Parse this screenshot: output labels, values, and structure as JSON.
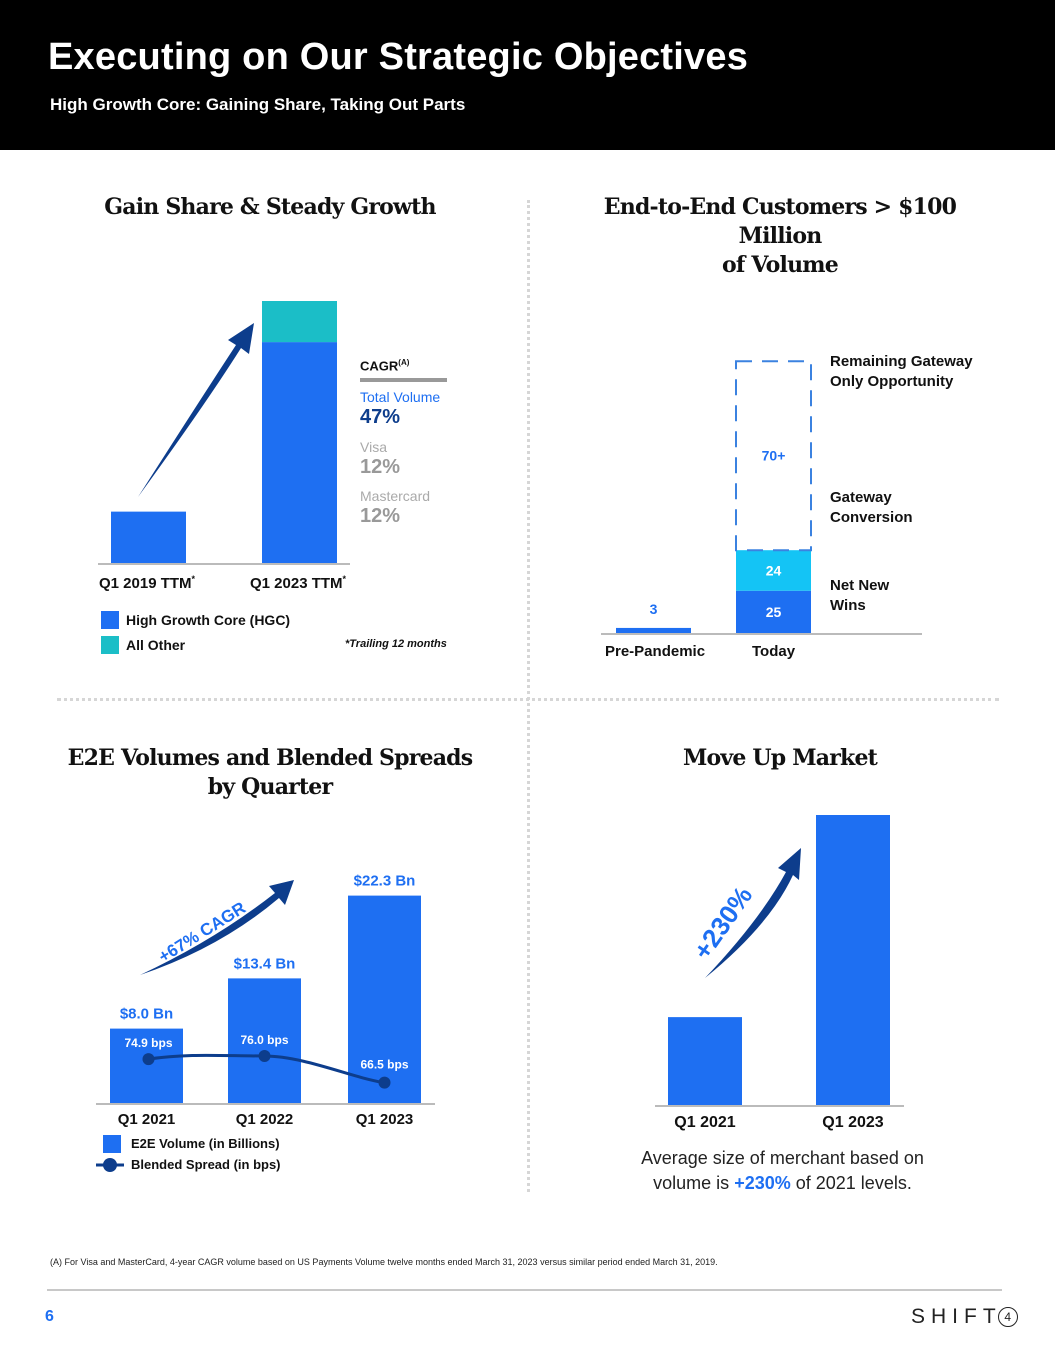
{
  "header": {
    "title": "Executing on Our Strategic Objectives",
    "subtitle": "High Growth Core: Gaining Share, Taking Out Parts"
  },
  "colors": {
    "accent_blue": "#1e6ff2",
    "teal": "#1bbec7",
    "light_blue": "#14c4f5",
    "dark_navy": "#0d3d8c",
    "gray": "#999999"
  },
  "panel1": {
    "title": "Gain Share & Steady Growth",
    "cagr_label": "CAGR",
    "cagr_superscript": "(A)",
    "metrics": [
      {
        "label": "Total Volume",
        "value": "47%"
      },
      {
        "label": "Visa",
        "value": "12%"
      },
      {
        "label": "Mastercard",
        "value": "12%"
      }
    ],
    "x_labels": [
      "Q1 2019 TTM",
      "Q1 2023 TTM"
    ],
    "asterisk": "*",
    "legend": [
      "High Growth Core (HGC)",
      "All Other"
    ],
    "note": "*Trailing 12 months"
  },
  "panel2": {
    "title_line1": "End-to-End Customers > $100 Million",
    "title_line2": "of Volume",
    "side_labels": [
      "Remaining Gateway\nOnly Opportunity",
      "Gateway\nConversion",
      "Net New\nWins"
    ],
    "x_labels": [
      "Pre-Pandemic",
      "Today"
    ]
  },
  "panel3": {
    "title_line1": "E2E Volumes and Blended Spreads",
    "title_line2": "by Quarter",
    "cagr_text": "+67% CAGR",
    "legend": [
      "E2E Volume (in Billions)",
      "Blended Spread (in bps)"
    ]
  },
  "panel4": {
    "title": "Move Up Market",
    "growth_text": "+230%",
    "caption_part1": "Average size of merchant based on",
    "caption_part2": "volume is ",
    "caption_highlight": "+230%",
    "caption_part3": " of 2021 levels."
  },
  "chart_data": [
    {
      "type": "bar",
      "title": "Gain Share & Steady Growth",
      "categories": [
        "Q1 2019 TTM",
        "Q1 2023 TTM"
      ],
      "series": [
        {
          "name": "High Growth Core (HGC)",
          "values": [
            1.0,
            4.3
          ]
        },
        {
          "name": "All Other",
          "values": [
            0,
            0.8
          ]
        }
      ],
      "stacked": true,
      "ylim": [
        0,
        5.1
      ],
      "note": "values approximate relative scale (unlabeled)"
    },
    {
      "type": "bar",
      "title": "End-to-End Customers > $100 Million of Volume",
      "categories": [
        "Pre-Pandemic",
        "Today"
      ],
      "series": [
        {
          "name": "Net New Wins",
          "values": [
            3,
            25
          ],
          "labels": [
            "3",
            "25"
          ]
        },
        {
          "name": "Gateway Conversion",
          "values": [
            0,
            24
          ],
          "labels": [
            "",
            "24"
          ]
        },
        {
          "name": "Remaining Gateway Only Opportunity",
          "values": [
            0,
            70
          ],
          "labels": [
            "",
            "70+"
          ]
        }
      ],
      "stacked": true,
      "ylim": [
        0,
        130
      ]
    },
    {
      "type": "bar",
      "title": "E2E Volumes and Blended Spreads by Quarter",
      "categories": [
        "Q1 2021",
        "Q1 2022",
        "Q1 2023"
      ],
      "series": [
        {
          "name": "E2E Volume (in Billions)",
          "values": [
            8.0,
            13.4,
            22.3
          ],
          "labels": [
            "$8.0 Bn",
            "$13.4 Bn",
            "$22.3 Bn"
          ]
        },
        {
          "name": "Blended Spread (in bps)",
          "type": "line",
          "values": [
            74.9,
            76.0,
            66.5
          ],
          "labels": [
            "74.9 bps",
            "76.0 bps",
            "66.5 bps"
          ]
        }
      ],
      "ylim": [
        0,
        24
      ]
    },
    {
      "type": "bar",
      "title": "Move Up Market",
      "categories": [
        "Q1 2021",
        "Q1 2023"
      ],
      "values": [
        1.0,
        3.3
      ],
      "ylim": [
        0,
        3.5
      ],
      "annotation": "+230%"
    }
  ],
  "footer": {
    "footnote": "(A) For Visa and MasterCard, 4-year CAGR volume based on US Payments Volume twelve months ended March 31, 2023 versus similar period ended March 31, 2019.",
    "page_number": "6",
    "logo_text": "SHIFT",
    "logo_digit": "4"
  }
}
